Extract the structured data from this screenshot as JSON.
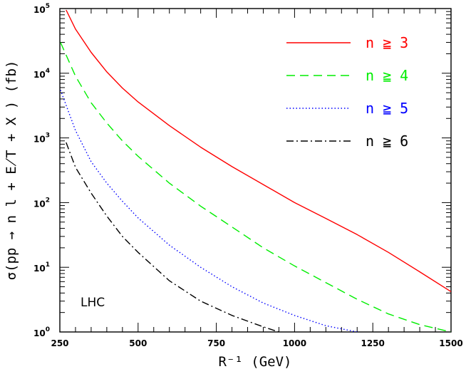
{
  "chart_data": {
    "type": "line",
    "title": "",
    "xlabel": "R⁻¹ (GeV)",
    "ylabel": "σ(pp → n l + E̸T + X ) (fb)",
    "xlim": [
      250,
      1500
    ],
    "ylim": [
      1,
      100000
    ],
    "yscale": "log",
    "x_ticks": [
      250,
      500,
      750,
      1000,
      1250,
      1500
    ],
    "x_tick_labels": [
      "250",
      "500",
      "750",
      "1000",
      "1250",
      "1500"
    ],
    "y_ticks": [
      1,
      10,
      100,
      1000,
      10000,
      100000
    ],
    "y_tick_labels": [
      {
        "base": "10",
        "exp": "0"
      },
      {
        "base": "10",
        "exp": "1"
      },
      {
        "base": "10",
        "exp": "2"
      },
      {
        "base": "10",
        "exp": "3"
      },
      {
        "base": "10",
        "exp": "4"
      },
      {
        "base": "10",
        "exp": "5"
      }
    ],
    "legend_position": "top-right",
    "annotation": "LHC",
    "series": [
      {
        "name": "n ≧ 3",
        "color": "#ff0000",
        "dash": "solid",
        "x": [
          270,
          300,
          350,
          400,
          450,
          500,
          600,
          700,
          800,
          900,
          1000,
          1100,
          1200,
          1300,
          1400,
          1500
        ],
        "y": [
          95000,
          48000,
          21000,
          10500,
          5900,
          3600,
          1550,
          720,
          360,
          190,
          100,
          57,
          32,
          17,
          8.5,
          4.2
        ]
      },
      {
        "name": "n ≧ 4",
        "color": "#00ee00",
        "dash": "dashed",
        "x": [
          252,
          300,
          350,
          400,
          450,
          500,
          600,
          700,
          800,
          900,
          1000,
          1100,
          1200,
          1300,
          1400,
          1500
        ],
        "y": [
          30000,
          9000,
          3500,
          1700,
          900,
          520,
          200,
          88,
          42,
          20,
          10.5,
          5.8,
          3.2,
          1.9,
          1.3,
          1.0
        ]
      },
      {
        "name": "n ≧ 5",
        "color": "#0000ff",
        "dash": "dotted",
        "x": [
          252,
          300,
          350,
          400,
          450,
          500,
          600,
          700,
          800,
          900,
          1000,
          1100,
          1200
        ],
        "y": [
          5500,
          1300,
          430,
          200,
          105,
          58,
          22,
          10,
          5,
          2.8,
          1.8,
          1.25,
          1.0
        ]
      },
      {
        "name": "n ≧ 6",
        "color": "#000000",
        "dash": "dashdot",
        "x": [
          270,
          300,
          350,
          400,
          450,
          500,
          600,
          700,
          800,
          900,
          950
        ],
        "y": [
          850,
          350,
          140,
          62,
          30,
          17,
          6.2,
          3.0,
          1.8,
          1.2,
          1.0
        ]
      }
    ]
  }
}
